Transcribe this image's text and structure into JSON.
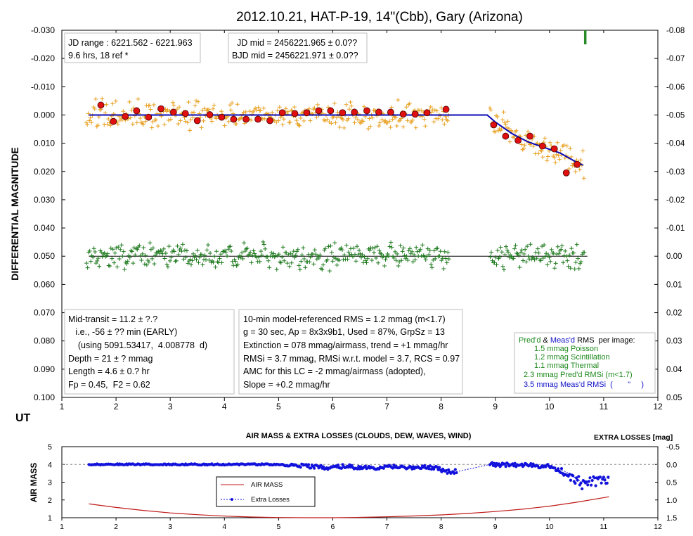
{
  "colors": {
    "target": "#e8a020",
    "check": "#1e7a1e",
    "binned": "#e01010",
    "model": "#0a0ab4",
    "extra_losses": "#1212dc",
    "air_mass": "#c01818",
    "rms_green": "#1e8a1e",
    "rms_blue": "#1212c8"
  },
  "chart_data": [
    {
      "type": "scatter",
      "title": "2012.10.21, HAT-P-19,  14\"(Cbb), Gary (Arizona)",
      "xlabel": "UT",
      "ylabel": "DIFFERENTIAL  MAGNITUDE",
      "xlim": [
        1,
        12
      ],
      "ylim": [
        -0.03,
        0.1
      ],
      "y_inverted": true,
      "y2lim": [
        -0.08,
        0.05
      ],
      "x_ticks": [
        "1",
        "2",
        "3",
        "4",
        "5",
        "6",
        "7",
        "8",
        "9",
        "10",
        "11",
        "12"
      ],
      "y_ticks": [
        "-0.030",
        "-0.020",
        "-0.010",
        "0.000",
        "0.010",
        "0.020",
        "0.030",
        "0.040",
        "0.050",
        "0.060",
        "0.070",
        "0.080",
        "0.090",
        "0.100"
      ],
      "y2_ticks": [
        "-0.08",
        "-0.07",
        "-0.06",
        "-0.05",
        "-0.04",
        "-0.03",
        "-0.02",
        "-0.01",
        "0.00",
        "0.01",
        "0.02",
        "0.03",
        "0.04",
        "0.05"
      ],
      "grid": false,
      "binned_points": {
        "x": [
          1.72,
          1.95,
          2.17,
          2.38,
          2.6,
          2.83,
          3.06,
          3.28,
          3.5,
          3.73,
          3.95,
          4.17,
          4.4,
          4.62,
          4.84,
          5.07,
          5.3,
          5.52,
          5.74,
          5.96,
          6.18,
          6.4,
          6.63,
          6.85,
          7.07,
          7.3,
          7.52,
          7.74,
          8.09,
          8.97,
          9.19,
          9.42,
          9.64,
          9.87,
          10.09,
          10.31,
          10.51
        ],
        "y": [
          -0.0035,
          0.0023,
          0.0005,
          -0.0015,
          0.0008,
          -0.0022,
          -0.001,
          -0.0005,
          0.002,
          -0.0001,
          0.0008,
          0.0015,
          0.0015,
          0.0015,
          0.002,
          -0.0008,
          -0.0005,
          -0.0008,
          -0.0015,
          -0.0015,
          -0.0008,
          -0.001,
          -0.0015,
          -0.001,
          -0.001,
          -0.0003,
          -0.0003,
          -0.0008,
          -0.002,
          0.0035,
          0.0075,
          0.009,
          0.0075,
          0.011,
          0.012,
          0.0205,
          0.0175
        ]
      },
      "model_line": {
        "x": [
          1.5,
          8.85,
          9.0,
          9.3,
          9.6,
          9.9,
          10.2,
          10.45,
          10.62
        ],
        "y": [
          0.0,
          0.0,
          0.0025,
          0.0065,
          0.0095,
          0.0115,
          0.0135,
          0.0162,
          0.0178
        ]
      },
      "check_baseline": {
        "y": 0.05,
        "xrange": [
          1.5,
          10.7
        ]
      },
      "ingress_marker": {
        "x": 10.66,
        "y2_range": [
          -0.08,
          -0.075
        ]
      },
      "annotations": {
        "jd_range": [
          "JD range : 6221.562  - 6221.963",
          " 9.6 hrs, 18 ref *"
        ],
        "jd_mid": [
          "JD mid = 2456221.965  ± 0.0??",
          "BJD mid = 2456221.971  ± 0.0??"
        ],
        "transit": [
          "Mid-transit = 11.2 ± ?.?",
          "   i.e., -56 ± ?? min (EARLY)",
          "    (using 5091.53417,  4.008778  d)",
          "Depth = 21 ± ? mmag",
          "Length = 4.6 ± 0.? hr",
          "Fp = 0.45,  F2 = 0.62"
        ],
        "rms": [
          "10-min model-referenced RMS = 1.2 mmag (m<1.7)",
          "g = 30 sec, Ap = 8x3x9b1, Used = 87%, GrpSz = 13",
          "Extinction = 078  mmag/airmass, trend = +1 mmag/hr",
          "RMSi = 3.7 mmag, RMSi w.r.t. model = 3.7,  RCS = 0.97",
          "AMC for this LC = -2 mmag/airmass (adopted),",
          "Slope = +0.2 mmag/hr"
        ],
        "per_image_title": {
          "a": "Pred'd",
          "b": " & ",
          "c": "Meas'd",
          "d": " RMS  per image:"
        },
        "per_image_rows": [
          {
            "value": "1.5",
            "label": "mmag Poisson"
          },
          {
            "value": "1.2",
            "label": "mmag Scintillation"
          },
          {
            "value": "1.1",
            "label": "mmag Thermal"
          },
          {
            "value": "2.3",
            "label": "mmag Pred'd  RMSi  (m<1.7)"
          },
          {
            "value": "3.5",
            "label": "mmag Meas'd RMSi  (       \"     )"
          }
        ]
      }
    },
    {
      "type": "line",
      "title": "AIR MASS & EXTRA LOSSES  (CLOUDS,  DEW,  WAVES,  WIND)",
      "ylabel": "AIR MASS",
      "y2label": "EXTRA LOSSES  [mag]",
      "xlim": [
        1,
        12
      ],
      "ylim": [
        1,
        5
      ],
      "y2lim": [
        -0.5,
        1.5
      ],
      "x_ticks": [
        "1",
        "2",
        "3",
        "4",
        "5",
        "6",
        "7",
        "8",
        "9",
        "10",
        "11",
        "12"
      ],
      "y_ticks": [
        "1",
        "2",
        "3",
        "4",
        "5"
      ],
      "y2_ticks": [
        "-0.5",
        "0.0",
        "0.5",
        "1.0",
        "1.5"
      ],
      "legend": {
        "placement": "center-left",
        "entries": [
          "AIR MASS",
          "Extra Losses"
        ]
      },
      "series": [
        {
          "name": "AIR MASS",
          "x": [
            1.5,
            2.0,
            2.5,
            3.0,
            3.5,
            4.0,
            4.5,
            5.0,
            5.5,
            6.0,
            6.5,
            7.0,
            7.5,
            8.0,
            8.5,
            9.0,
            9.5,
            10.0,
            10.5,
            11.1
          ],
          "y": [
            1.78,
            1.58,
            1.41,
            1.27,
            1.17,
            1.09,
            1.04,
            1.01,
            1.0,
            1.0,
            1.02,
            1.05,
            1.1,
            1.16,
            1.24,
            1.35,
            1.48,
            1.65,
            1.87,
            2.18
          ]
        },
        {
          "name": "Extra Losses",
          "x": [
            1.5,
            2.0,
            2.5,
            3.0,
            3.5,
            4.0,
            4.5,
            5.0,
            5.3,
            5.6,
            5.9,
            6.2,
            6.5,
            6.8,
            7.1,
            7.4,
            7.7,
            7.9,
            8.1,
            8.3,
            8.9,
            9.2,
            9.5,
            9.8,
            10.0,
            10.15,
            10.3,
            10.45,
            10.6,
            10.75,
            10.9,
            11.1
          ],
          "y": [
            0.0,
            0.0,
            0.0,
            0.0,
            0.0,
            0.0,
            0.0,
            0.0,
            0.05,
            0.05,
            0.08,
            0.05,
            0.1,
            0.1,
            0.06,
            0.1,
            0.08,
            0.1,
            0.2,
            0.2,
            0.0,
            0.02,
            0.02,
            0.05,
            0.05,
            0.15,
            0.2,
            0.35,
            0.5,
            0.45,
            0.35,
            0.4
          ]
        }
      ]
    }
  ]
}
